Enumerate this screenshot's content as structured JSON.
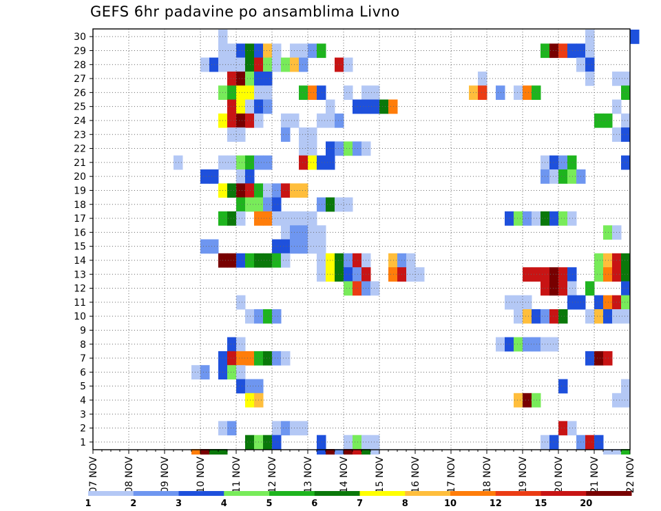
{
  "title": "GEFS 6hr padavine po ansamblima Livno",
  "chart_data": {
    "type": "heatmap",
    "title": "GEFS 6hr padavine po ansamblima Livno",
    "xlabel": "",
    "ylabel": "",
    "x_ticks": [
      "07 NOV",
      "08 NOV",
      "09 NOV",
      "10 NOV",
      "11 NOV",
      "12 NOV",
      "13 NOV",
      "14 NOV",
      "15 NOV",
      "16 NOV",
      "17 NOV",
      "18 NOV",
      "19 NOV",
      "20 NOV",
      "21 NOV",
      "22 NOV"
    ],
    "y_ticks": [
      "1",
      "2",
      "3",
      "4",
      "5",
      "6",
      "7",
      "8",
      "9",
      "10",
      "11",
      "12",
      "13",
      "14",
      "15",
      "16",
      "17",
      "18",
      "19",
      "20",
      "21",
      "22",
      "23",
      "24",
      "25",
      "26",
      "27",
      "28",
      "29",
      "30"
    ],
    "steps_per_day": 4,
    "members": 30,
    "grid": true,
    "legend_position": "bottom",
    "legend": {
      "labels": [
        "1",
        "2",
        "3",
        "4",
        "5",
        "6",
        "7",
        "8",
        "10",
        "12",
        "15",
        "20"
      ],
      "colors": [
        "#b4c8f5",
        "#6e96f0",
        "#1e50dc",
        "#78eb5a",
        "#1eb41e",
        "#0a780a",
        "#ffff00",
        "#ffbe3c",
        "#ff7d0a",
        "#eb3c14",
        "#c81414",
        "#780000"
      ]
    },
    "rows": [
      {
        "member": "30",
        "cells": "p14:0 p55:0 p60:2"
      },
      {
        "member": "29",
        "cells": "p14:0 p15:0 p16:2 p17:5 p18:2 p19:7 p20:0 p22:0 p23:0 p24:1 p25:4 p50:4 p51:11 p52:9 p53:2 p54:2 p55:0"
      },
      {
        "member": "28",
        "cells": "p12:0 p13:2 p14:0 p15:0 p16:0 p17:5 p18:10 p19:3 p20:0 p21:3 p22:7 p23:1 p27:10 p28:0 p54:0 p55:2"
      },
      {
        "member": "27",
        "cells": "p15:10 p16:11 p17:3 p18:2 p19:2 p43:0 p55:0 p58:0 p59:0"
      },
      {
        "member": "26",
        "cells": "p14:3 p15:4 p16:6 p17:6 p18:0 p19:0 p23:4 p24:8 p25:2 p28:0 p30:0 p31:0 p42:7 p43:9 p45:1 p47:0 p48:8 p49:4 p59:4"
      },
      {
        "member": "25",
        "cells": "p15:10 p16:6 p17:0 p18:2 p19:1 p26:0 p29:2 p30:2 p31:2 p32:5 p33:8 p58:0"
      },
      {
        "member": "24",
        "cells": "p14:6 p15:10 p16:11 p17:10 p18:0 p21:0 p22:0 p25:0 p26:0 p27:1 p56:4 p57:4 p59:0"
      },
      {
        "member": "23",
        "cells": "p15:0 p16:0 p21:1 p23:0 p24:0 p58:0 p59:2"
      },
      {
        "member": "22",
        "cells": "p23:0 p24:0 p26:2 p27:1 p28:3 p29:1 p30:0"
      },
      {
        "member": "21",
        "cells": "p9:0 p14:0 p15:0 p16:3 p17:4 p18:1 p19:1 p23:10 p24:6 p25:2 p26:2 p50:0 p51:2 p52:1 p53:4 p59:2"
      },
      {
        "member": "20",
        "cells": "p12:2 p13:2 p16:0 p17:2 p50:1 p51:0 p52:4 p53:3 p54:1"
      },
      {
        "member": "19",
        "cells": "p14:6 p15:5 p16:11 p17:10 p18:4 p19:0 p20:1 p21:10 p22:7 p23:7"
      },
      {
        "member": "18",
        "cells": "p16:4 p17:3 p18:3 p19:1 p20:2 p25:1 p26:5 p27:0 p28:0"
      },
      {
        "member": "17",
        "cells": "p14:4 p15:5 p16:0 p18:8 p19:8 p20:0 p21:0 p22:0 p23:0 p24:0 p46:2 p47:3 p48:1 p49:0 p50:5 p51:2 p52:3 p53:0"
      },
      {
        "member": "16",
        "cells": "p21:0 p22:1 p23:1 p24:0 p25:0 p57:3 p58:0"
      },
      {
        "member": "15",
        "cells": "p12:1 p13:1 p20:2 p21:2 p22:1 p23:1 p24:0 p25:0"
      },
      {
        "member": "14",
        "cells": "p14:11 p15:11 p16:2 p17:4 p18:5 p19:5 p20:4 p21:0 p25:0 p26:6 p27:5 p28:1 p29:10 p30:0 p33:7 p34:1 p35:0 p56:3 p57:7 p58:10 p59:5"
      },
      {
        "member": "13",
        "cells": "p25:0 p26:6 p27:5 p28:2 p29:1 p30:10 p33:8 p34:10 p35:0 p36:0 p48:10 p49:10 p50:10 p51:11 p52:10 p53:2 p56:3 p57:8 p58:10 p59:5"
      },
      {
        "member": "12",
        "cells": "p28:3 p29:9 p30:1 p31:0 p50:10 p51:11 p52:10 p53:0 p55:4 p59:2"
      },
      {
        "member": "11",
        "cells": "p16:0 p46:0 p47:0 p48:0 p53:2 p54:2 p56:2 p57:8 p58:10 p59:3"
      },
      {
        "member": "10",
        "cells": "p17:0 p18:1 p19:4 p20:1 p47:0 p48:7 p49:2 p50:1 p51:10 p52:5 p55:0 p56:7 p57:2 p58:0 p59:0"
      },
      {
        "member": "9",
        "cells": ""
      },
      {
        "member": "8",
        "cells": "p15:2 p16:0 p45:0 p46:2 p47:3 p48:1 p49:1 p50:0 p51:0"
      },
      {
        "member": "7",
        "cells": "p14:2 p15:10 p16:8 p17:8 p18:4 p19:5 p20:1 p21:0 p55:2 p56:11 p57:10"
      },
      {
        "member": "6",
        "cells": "p11:0 p12:1 p14:2 p15:3 p16:0"
      },
      {
        "member": "5",
        "cells": "p16:2 p17:1 p18:1 p52:2 p59:0"
      },
      {
        "member": "4",
        "cells": "p17:6 p18:7 p47:7 p48:11 p49:3 p58:0 p59:0"
      },
      {
        "member": "3",
        "cells": ""
      },
      {
        "member": "2",
        "cells": "p14:0 p15:1 p20:0 p21:1 p22:0 p23:0 p52:10 p53:0"
      },
      {
        "member": "1",
        "cells": "p17:5 p18:3 p19:5 p20:2 p25:2 p28:0 p29:3 p30:0 p31:0 p50:0 p51:2 p54:1 p55:10 p56:2"
      },
      {
        "member": "",
        "cells": "p11:8 p12:11 p13:5 p14:5 p25:2 p26:11 p27:1 p28:11 p29:10 p30:5 p31:0 p57:0 p58:0 p59:4"
      }
    ]
  }
}
